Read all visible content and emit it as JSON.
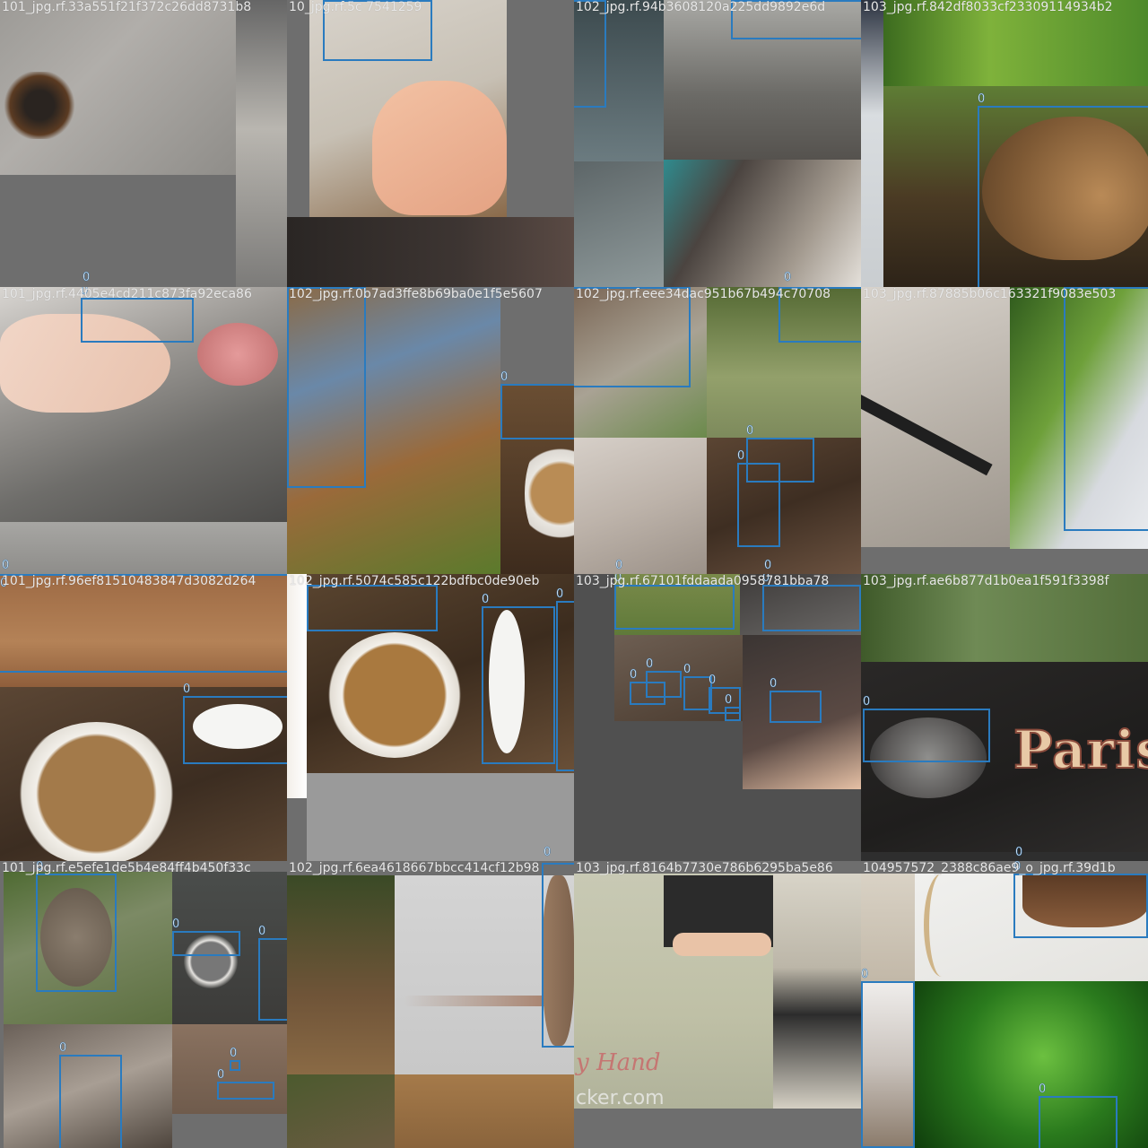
{
  "grid": {
    "tiles": [
      {
        "title": "101_jpg.rf.33a551f21f372c26dd8731b8",
        "boxes": []
      },
      {
        "title": "10_jpg.rf.5c    7541259",
        "boxes": []
      },
      {
        "title": "102_jpg.rf.94b3608120a225dd9892e6d",
        "boxes": []
      },
      {
        "title": "103_jpg.rf.842df8033cf23309114934b2",
        "boxes": [
          "0"
        ]
      },
      {
        "title": "101_jpg.rf.4405e4cd211c873fa92eca86",
        "boxes": [
          "0"
        ]
      },
      {
        "title": "102_jpg.rf.0b7ad3ffe8b69ba0e1f5e5607",
        "boxes": [
          "0",
          "0"
        ]
      },
      {
        "title": "102_jpg.rf.eee34dac951b67b494c70708",
        "boxes": [
          "0",
          "0",
          "0",
          "0"
        ]
      },
      {
        "title": "103_jpg.rf.87885b06c163321f9083e503",
        "boxes": [
          "0"
        ]
      },
      {
        "title": "101_jpg.rf.96ef81510483847d3082d264",
        "boxes": [
          "0",
          "0"
        ]
      },
      {
        "title": "102_jpg.rf.5074c585c122bdfbc0de90eb",
        "boxes": [
          "0",
          "0",
          "0"
        ]
      },
      {
        "title": "103_jpg.rf.67101fddaada0958781bba78",
        "boxes": [
          "0",
          "0",
          "0",
          "0",
          "0",
          "0",
          "0",
          "0"
        ]
      },
      {
        "title": "103_jpg.rf.ae6b877d1b0ea1f591f3398f",
        "boxes": [
          "0"
        ]
      },
      {
        "title": "101_jpg.rf.e5efe1de5b4e84ff4b450f33c",
        "boxes": [
          "0",
          "0",
          "0",
          "0",
          "0",
          "0"
        ]
      },
      {
        "title": "102_jpg.rf.6ea4618667bbcc414cf12b98",
        "boxes": [
          "0"
        ]
      },
      {
        "title": "103_jpg.rf.8164b7730e786b6295ba5e86",
        "boxes": []
      },
      {
        "title": "104957572_2388c86ae9_o_jpg.rf.39d1b",
        "boxes": [
          "0",
          "0",
          "0"
        ]
      }
    ]
  },
  "texts": {
    "paris": "Paris",
    "hand": "y Hand",
    "url": "cker.com"
  },
  "colors": {
    "bbox": "#2a7bbf",
    "padding_gray": "#6e6e6e",
    "title_text": "#e8e8e8"
  }
}
